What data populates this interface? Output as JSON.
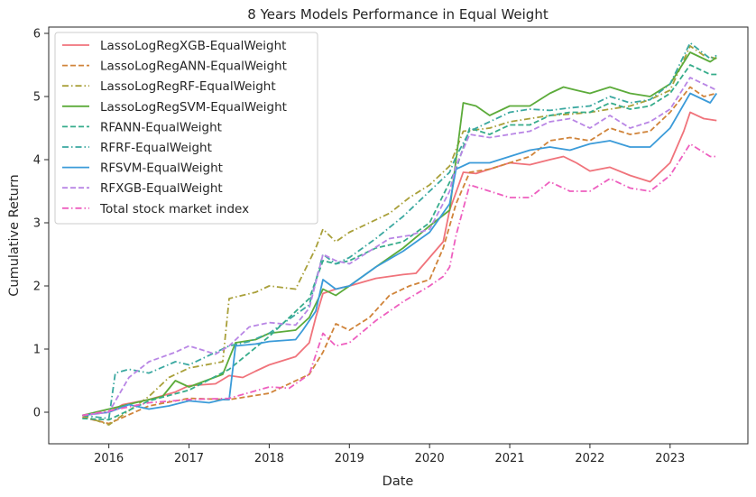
{
  "chart_data": {
    "type": "line",
    "title": "8 Years Models Performance in Equal Weight",
    "xlabel": "Date",
    "ylabel": "Cumulative Return",
    "xlim": [
      2015.25,
      2023.97
    ],
    "ylim": [
      -0.5,
      6.1
    ],
    "xticks": [
      2016,
      2017,
      2018,
      2019,
      2020,
      2021,
      2022,
      2023
    ],
    "yticks": [
      0,
      1,
      2,
      3,
      4,
      5,
      6
    ],
    "grid": false,
    "legend_position": "top-left",
    "series": [
      {
        "name": "LassoLogRegXGB-EqualWeight",
        "color": "#f0737b",
        "dash": "solid",
        "x": [
          2015.67,
          2016.0,
          2016.17,
          2016.5,
          2016.83,
          2017.0,
          2017.33,
          2017.5,
          2017.67,
          2017.83,
          2018.0,
          2018.33,
          2018.5,
          2018.58,
          2018.67,
          2018.83,
          2019.0,
          2019.33,
          2019.67,
          2019.83,
          2020.0,
          2020.17,
          2020.25,
          2020.42,
          2020.58,
          2020.75,
          2021.0,
          2021.25,
          2021.5,
          2021.67,
          2021.83,
          2022.0,
          2022.25,
          2022.5,
          2022.75,
          2023.0,
          2023.17,
          2023.25,
          2023.42,
          2023.58
        ],
        "y": [
          -0.05,
          0.0,
          0.12,
          0.2,
          0.32,
          0.42,
          0.45,
          0.58,
          0.55,
          0.65,
          0.75,
          0.88,
          1.1,
          1.5,
          1.88,
          1.95,
          2.0,
          2.12,
          2.18,
          2.2,
          2.45,
          2.7,
          3.2,
          3.8,
          3.78,
          3.85,
          3.95,
          3.92,
          4.0,
          4.05,
          3.95,
          3.82,
          3.88,
          3.75,
          3.65,
          3.95,
          4.45,
          4.75,
          4.65,
          4.62
        ]
      },
      {
        "name": "LassoLogRegANN-EqualWeight",
        "color": "#d0843a",
        "dash": "dashed",
        "x": [
          2015.67,
          2016.0,
          2016.5,
          2017.0,
          2017.5,
          2018.0,
          2018.5,
          2018.67,
          2018.83,
          2019.0,
          2019.25,
          2019.5,
          2019.75,
          2020.0,
          2020.17,
          2020.33,
          2020.5,
          2020.75,
          2021.0,
          2021.25,
          2021.5,
          2021.75,
          2022.0,
          2022.25,
          2022.5,
          2022.75,
          2023.0,
          2023.25,
          2023.42,
          2023.58
        ],
        "y": [
          -0.08,
          -0.18,
          0.1,
          0.22,
          0.2,
          0.3,
          0.6,
          0.95,
          1.4,
          1.3,
          1.5,
          1.85,
          2.0,
          2.1,
          2.6,
          3.3,
          3.8,
          3.85,
          3.95,
          4.05,
          4.3,
          4.35,
          4.3,
          4.5,
          4.4,
          4.45,
          4.75,
          5.15,
          5.0,
          5.05
        ]
      },
      {
        "name": "LassoLogRegRF-EqualWeight",
        "color": "#a9a03a",
        "dash": "dashdot",
        "x": [
          2015.67,
          2016.0,
          2016.5,
          2016.75,
          2017.0,
          2017.42,
          2017.5,
          2017.83,
          2018.0,
          2018.33,
          2018.58,
          2018.67,
          2018.83,
          2019.0,
          2019.25,
          2019.5,
          2019.75,
          2020.0,
          2020.25,
          2020.42,
          2020.75,
          2021.0,
          2021.25,
          2021.5,
          2021.75,
          2022.0,
          2022.25,
          2022.5,
          2022.75,
          2023.0,
          2023.25,
          2023.42,
          2023.58
        ],
        "y": [
          -0.05,
          -0.2,
          0.25,
          0.55,
          0.7,
          0.8,
          1.8,
          1.9,
          2.0,
          1.95,
          2.6,
          2.9,
          2.7,
          2.85,
          3.0,
          3.15,
          3.4,
          3.6,
          3.9,
          4.45,
          4.5,
          4.6,
          4.65,
          4.7,
          4.72,
          4.75,
          4.8,
          4.85,
          4.95,
          5.1,
          5.8,
          5.65,
          5.6
        ]
      },
      {
        "name": "LassoLogRegSVM-EqualWeight",
        "color": "#5cab3a",
        "dash": "solid",
        "x": [
          2015.67,
          2016.0,
          2016.33,
          2016.67,
          2016.83,
          2017.0,
          2017.42,
          2017.58,
          2017.83,
          2018.0,
          2018.33,
          2018.5,
          2018.67,
          2018.83,
          2019.0,
          2019.33,
          2019.67,
          2020.0,
          2020.25,
          2020.42,
          2020.58,
          2020.75,
          2021.0,
          2021.25,
          2021.5,
          2021.67,
          2021.83,
          2022.0,
          2022.25,
          2022.5,
          2022.75,
          2023.0,
          2023.25,
          2023.5,
          2023.58
        ],
        "y": [
          -0.05,
          0.05,
          0.15,
          0.25,
          0.5,
          0.4,
          0.6,
          1.1,
          1.15,
          1.25,
          1.3,
          1.5,
          1.95,
          1.85,
          2.0,
          2.3,
          2.6,
          2.95,
          3.2,
          4.9,
          4.85,
          4.7,
          4.85,
          4.85,
          5.05,
          5.15,
          5.1,
          5.05,
          5.15,
          5.05,
          5.0,
          5.2,
          5.7,
          5.55,
          5.62
        ]
      },
      {
        "name": "RFANN-EqualWeight",
        "color": "#36ac8b",
        "dash": "dashed",
        "x": [
          2015.67,
          2016.0,
          2016.5,
          2017.0,
          2017.5,
          2018.0,
          2018.5,
          2018.67,
          2018.83,
          2019.0,
          2019.33,
          2019.67,
          2020.0,
          2020.33,
          2020.5,
          2020.75,
          2021.0,
          2021.25,
          2021.5,
          2021.75,
          2022.0,
          2022.25,
          2022.5,
          2022.75,
          2023.0,
          2023.25,
          2023.5,
          2023.58
        ],
        "y": [
          -0.1,
          -0.12,
          0.18,
          0.35,
          0.68,
          1.2,
          1.8,
          2.4,
          2.35,
          2.4,
          2.6,
          2.7,
          3.0,
          3.85,
          4.5,
          4.4,
          4.55,
          4.55,
          4.7,
          4.75,
          4.75,
          4.9,
          4.8,
          4.85,
          5.05,
          5.5,
          5.35,
          5.35
        ]
      },
      {
        "name": "RFRF-EqualWeight",
        "color": "#3aa8a0",
        "dash": "dashdot",
        "x": [
          2015.67,
          2016.0,
          2016.08,
          2016.25,
          2016.5,
          2016.83,
          2017.0,
          2017.5,
          2017.75,
          2018.0,
          2018.5,
          2018.67,
          2018.83,
          2019.0,
          2019.33,
          2019.67,
          2020.0,
          2020.25,
          2020.33,
          2020.5,
          2020.75,
          2021.0,
          2021.25,
          2021.5,
          2021.75,
          2022.0,
          2022.25,
          2022.5,
          2022.75,
          2023.0,
          2023.25,
          2023.5,
          2023.58
        ],
        "y": [
          -0.05,
          -0.1,
          0.62,
          0.68,
          0.62,
          0.8,
          0.75,
          1.05,
          1.12,
          1.25,
          1.7,
          2.5,
          2.35,
          2.45,
          2.75,
          3.1,
          3.5,
          3.8,
          4.05,
          4.45,
          4.6,
          4.75,
          4.8,
          4.78,
          4.82,
          4.85,
          5.0,
          4.9,
          4.95,
          5.2,
          5.85,
          5.6,
          5.65
        ]
      },
      {
        "name": "RFSVM-EqualWeight",
        "color": "#3b9bd9",
        "dash": "solid",
        "x": [
          2015.67,
          2016.0,
          2016.25,
          2016.5,
          2016.75,
          2017.0,
          2017.25,
          2017.42,
          2017.5,
          2017.58,
          2017.83,
          2018.0,
          2018.33,
          2018.42,
          2018.58,
          2018.67,
          2018.83,
          2019.0,
          2019.33,
          2019.67,
          2020.0,
          2020.25,
          2020.33,
          2020.5,
          2020.75,
          2021.0,
          2021.25,
          2021.5,
          2021.75,
          2022.0,
          2022.25,
          2022.5,
          2022.75,
          2023.0,
          2023.25,
          2023.5,
          2023.58
        ],
        "y": [
          -0.05,
          0.0,
          0.12,
          0.05,
          0.1,
          0.18,
          0.15,
          0.2,
          0.2,
          1.05,
          1.08,
          1.12,
          1.15,
          1.3,
          1.6,
          2.1,
          1.95,
          2.0,
          2.3,
          2.55,
          2.85,
          3.3,
          3.85,
          3.95,
          3.95,
          4.05,
          4.15,
          4.2,
          4.15,
          4.25,
          4.3,
          4.2,
          4.2,
          4.5,
          5.05,
          4.9,
          5.05
        ]
      },
      {
        "name": "RFXGB-EqualWeight",
        "color": "#b986e5",
        "dash": "dashed",
        "x": [
          2015.67,
          2016.0,
          2016.25,
          2016.5,
          2016.83,
          2017.0,
          2017.33,
          2017.5,
          2017.75,
          2018.0,
          2018.33,
          2018.5,
          2018.67,
          2018.83,
          2019.0,
          2019.25,
          2019.5,
          2019.75,
          2020.0,
          2020.25,
          2020.33,
          2020.5,
          2020.75,
          2021.0,
          2021.25,
          2021.5,
          2021.75,
          2022.0,
          2022.25,
          2022.5,
          2022.75,
          2023.0,
          2023.25,
          2023.5,
          2023.58
        ],
        "y": [
          -0.05,
          0.0,
          0.55,
          0.8,
          0.95,
          1.05,
          0.92,
          1.05,
          1.35,
          1.42,
          1.38,
          1.65,
          2.5,
          2.4,
          2.35,
          2.55,
          2.75,
          2.8,
          2.9,
          3.5,
          3.9,
          4.4,
          4.35,
          4.4,
          4.45,
          4.6,
          4.65,
          4.5,
          4.7,
          4.5,
          4.6,
          4.8,
          5.3,
          5.15,
          5.1
        ]
      },
      {
        "name": "Total stock market index",
        "color": "#ee5fbf",
        "dash": "dashdot",
        "x": [
          2015.67,
          2016.0,
          2016.5,
          2017.0,
          2017.5,
          2018.0,
          2018.25,
          2018.5,
          2018.67,
          2018.83,
          2019.0,
          2019.33,
          2019.67,
          2020.0,
          2020.17,
          2020.25,
          2020.33,
          2020.5,
          2020.75,
          2021.0,
          2021.25,
          2021.5,
          2021.75,
          2022.0,
          2022.25,
          2022.5,
          2022.75,
          2023.0,
          2023.25,
          2023.5,
          2023.58
        ],
        "y": [
          -0.05,
          0.02,
          0.15,
          0.2,
          0.22,
          0.4,
          0.38,
          0.6,
          1.25,
          1.05,
          1.1,
          1.45,
          1.75,
          2.0,
          2.15,
          2.3,
          2.8,
          3.6,
          3.5,
          3.4,
          3.4,
          3.65,
          3.5,
          3.5,
          3.7,
          3.55,
          3.5,
          3.75,
          4.25,
          4.05,
          4.05
        ]
      }
    ]
  }
}
